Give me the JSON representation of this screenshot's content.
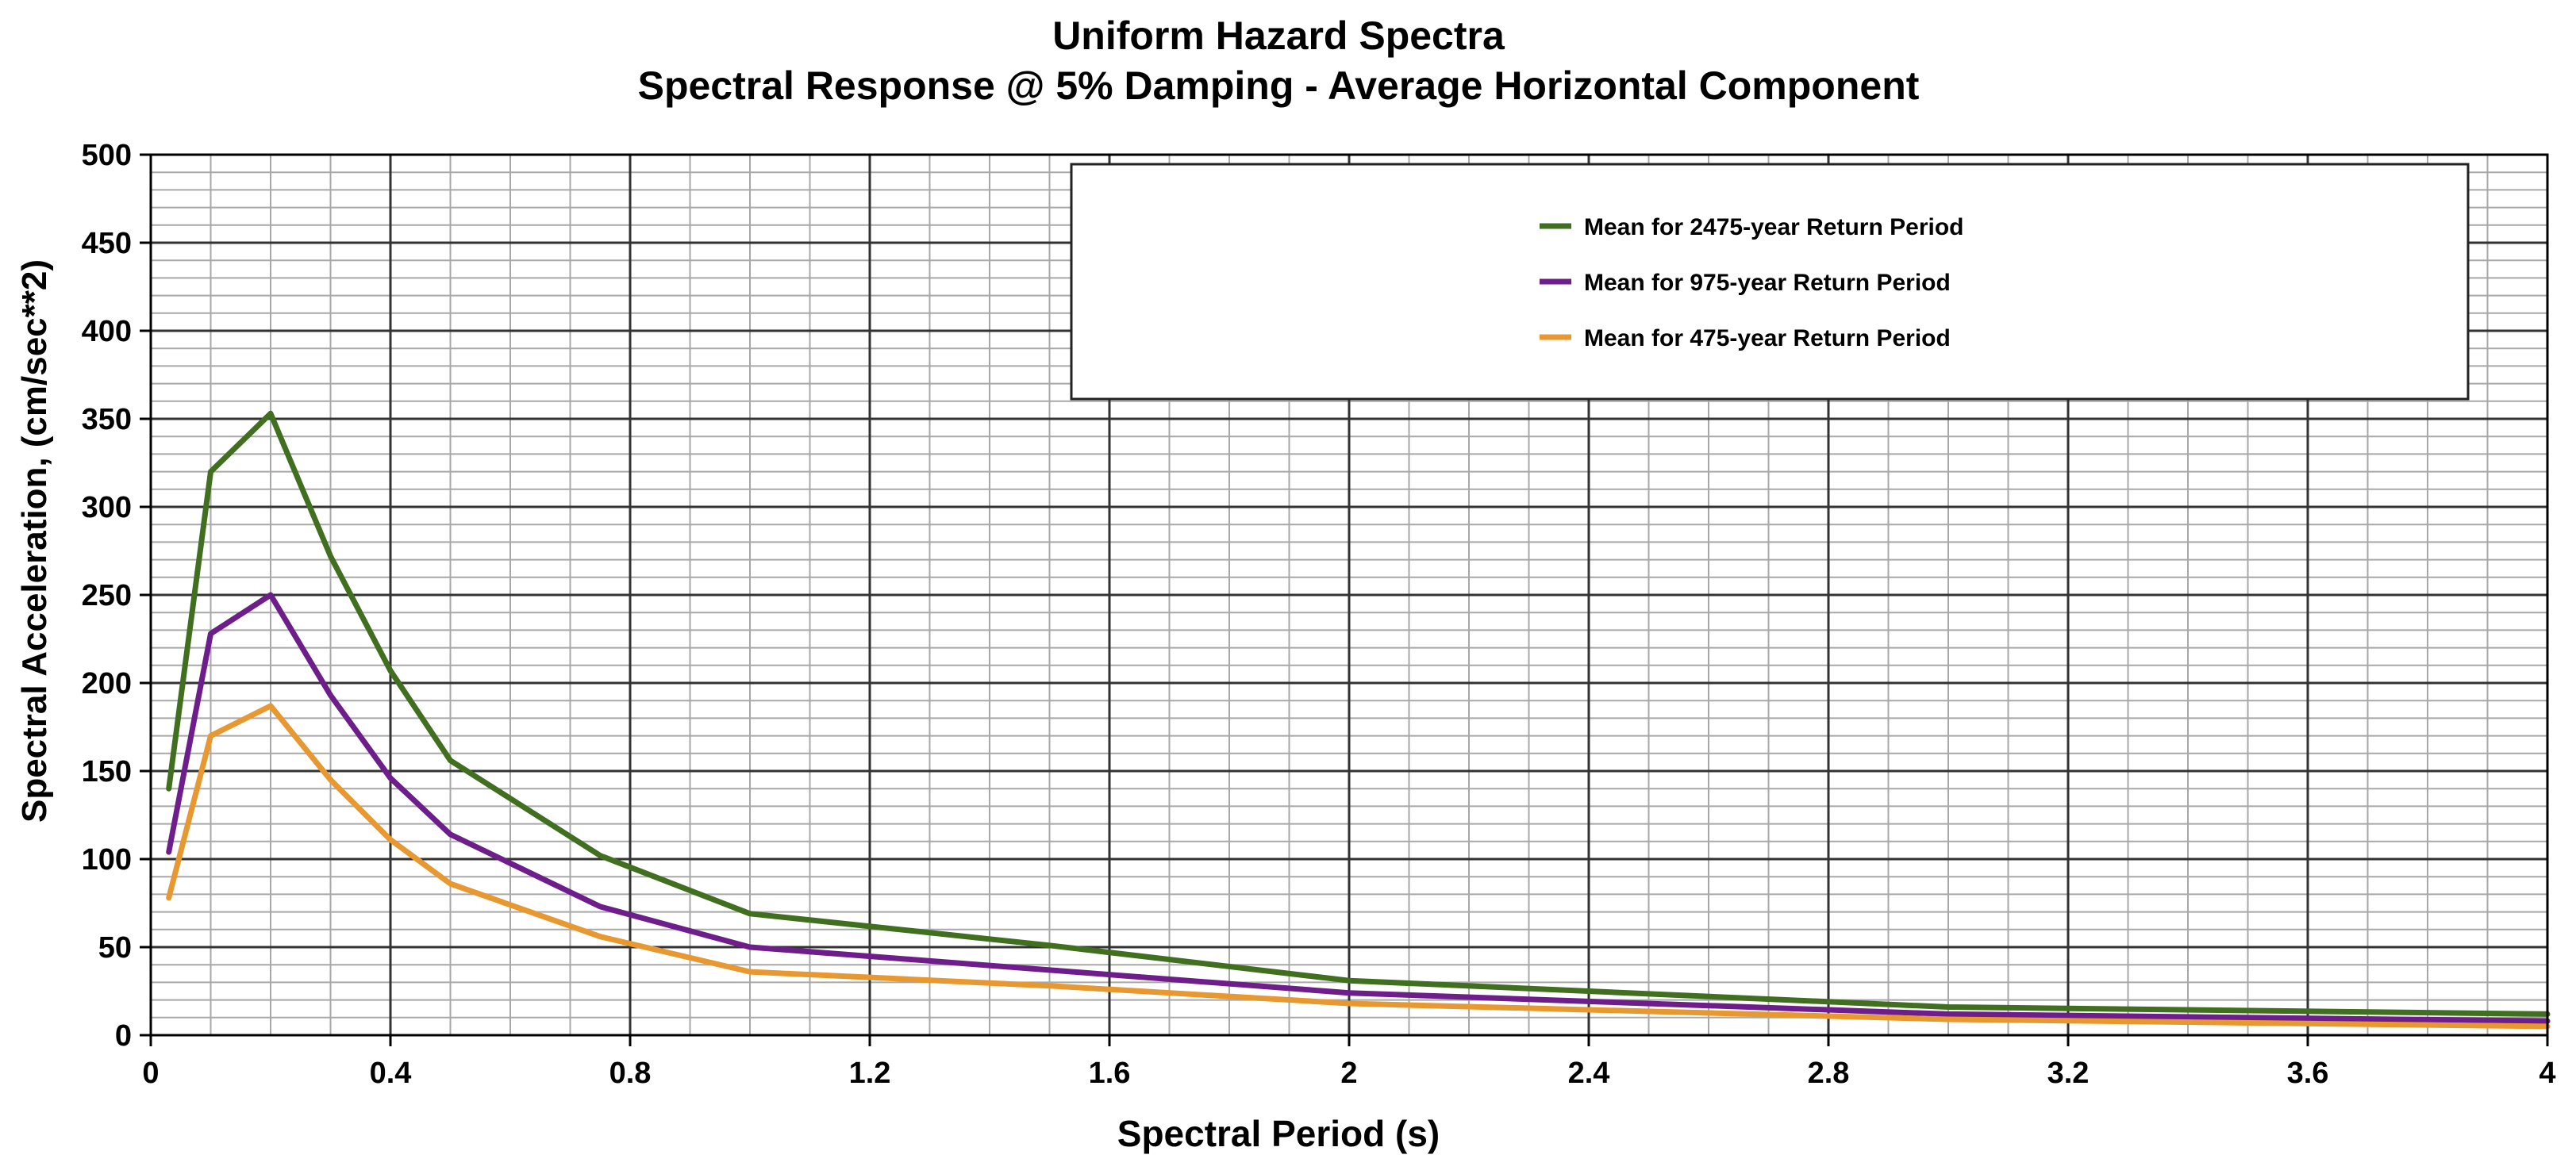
{
  "chart_data": {
    "type": "line",
    "title": "Uniform Hazard Spectra",
    "subtitle": "Spectral Response @ 5% Damping - Average Horizontal Component",
    "xlabel": "Spectral Period (s)",
    "ylabel": "Spectral Acceleration, (cm/sec**2)",
    "xlim": [
      0,
      4
    ],
    "ylim": [
      0,
      500
    ],
    "x_ticks": [
      "0",
      "0.4",
      "0.8",
      "1.2",
      "1.6",
      "2",
      "2.4",
      "2.8",
      "3.2",
      "3.6",
      "4"
    ],
    "y_ticks": [
      "0",
      "50",
      "100",
      "150",
      "200",
      "250",
      "300",
      "350",
      "400",
      "450",
      "500"
    ],
    "grid": true,
    "legend_position": "top-right",
    "series": [
      {
        "name": "Mean for 2475-year Return Period",
        "color": "#3f6f1f",
        "x": [
          0.03,
          0.1,
          0.2,
          0.3,
          0.4,
          0.5,
          0.75,
          1.0,
          1.5,
          2.0,
          3.0,
          4.0
        ],
        "y": [
          140,
          320,
          353,
          272,
          207,
          156,
          102,
          69,
          51,
          31,
          16,
          12
        ]
      },
      {
        "name": "Mean for 975-year Return Period",
        "color": "#6e1e8a",
        "x": [
          0.03,
          0.1,
          0.2,
          0.3,
          0.4,
          0.5,
          0.75,
          1.0,
          1.5,
          2.0,
          3.0,
          4.0
        ],
        "y": [
          104,
          228,
          250,
          193,
          146,
          114,
          73,
          50,
          37,
          24,
          12,
          8
        ]
      },
      {
        "name": "Mean for 475-year Return Period",
        "color": "#e89830",
        "x": [
          0.03,
          0.1,
          0.2,
          0.3,
          0.4,
          0.5,
          0.75,
          1.0,
          1.5,
          2.0,
          3.0,
          4.0
        ],
        "y": [
          78,
          170,
          187,
          145,
          111,
          86,
          56,
          36,
          28,
          18,
          9,
          5
        ]
      }
    ]
  }
}
